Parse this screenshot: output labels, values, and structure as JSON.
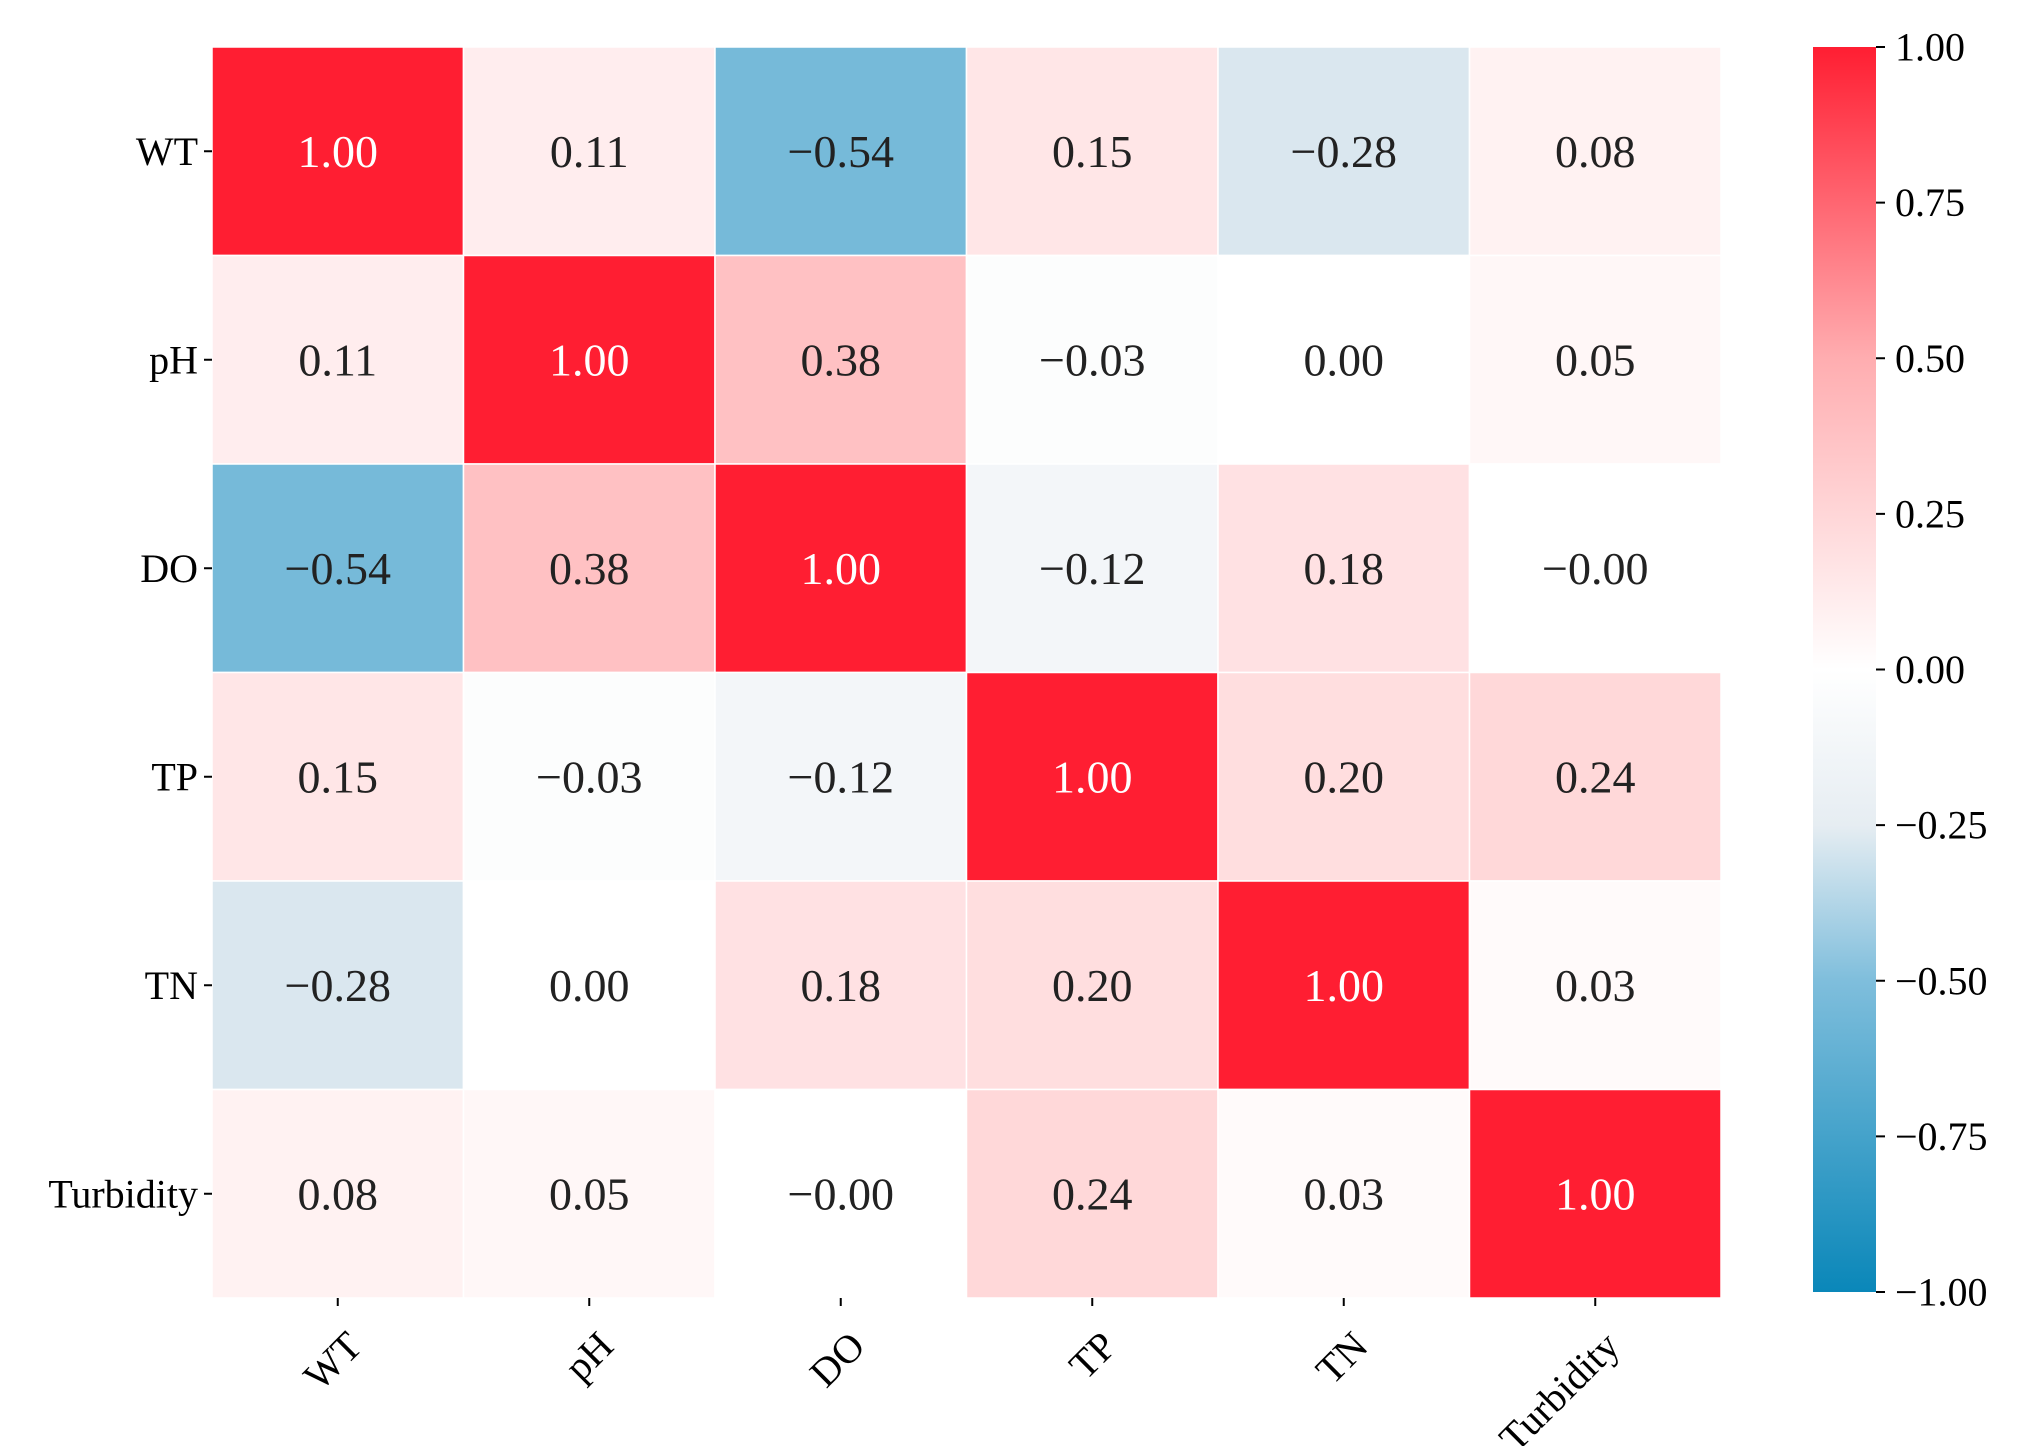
{
  "chart_data": {
    "type": "heatmap",
    "title": "",
    "xlabel": "",
    "ylabel": "",
    "rows": [
      "WT",
      "pH",
      "DO",
      "TP",
      "TN",
      "Turbidity"
    ],
    "cols": [
      "WT",
      "pH",
      "DO",
      "TP",
      "TN",
      "Turbidity"
    ],
    "values": [
      [
        1.0,
        0.11,
        -0.54,
        0.15,
        -0.28,
        0.08
      ],
      [
        0.11,
        1.0,
        0.38,
        -0.03,
        0.0,
        0.05
      ],
      [
        -0.54,
        0.38,
        1.0,
        -0.12,
        0.18,
        -0.0
      ],
      [
        0.15,
        -0.03,
        -0.12,
        1.0,
        0.2,
        0.24
      ],
      [
        -0.28,
        0.0,
        0.18,
        0.2,
        1.0,
        0.03
      ],
      [
        0.08,
        0.05,
        -0.0,
        0.24,
        0.03,
        1.0
      ]
    ],
    "labels": [
      [
        "1.00",
        "0.11",
        "−0.54",
        "0.15",
        "−0.28",
        "0.08"
      ],
      [
        "0.11",
        "1.00",
        "0.38",
        "−0.03",
        "0.00",
        "0.05"
      ],
      [
        "−0.54",
        "0.38",
        "1.00",
        "−0.12",
        "0.18",
        "−0.00"
      ],
      [
        "0.15",
        "−0.03",
        "−0.12",
        "1.00",
        "0.20",
        "0.24"
      ],
      [
        "−0.28",
        "0.00",
        "0.18",
        "0.20",
        "1.00",
        "0.03"
      ],
      [
        "0.08",
        "0.05",
        "−0.00",
        "0.24",
        "0.03",
        "1.00"
      ]
    ],
    "vmin": -1.0,
    "vmax": 1.0,
    "colorbar_ticks": [
      1.0,
      0.75,
      0.5,
      0.25,
      0.0,
      -0.25,
      -0.5,
      -0.75,
      -1.0
    ],
    "colorbar_tick_labels": [
      "1.00",
      "0.75",
      "0.50",
      "0.25",
      "0.00",
      "−0.25",
      "−0.50",
      "−0.75",
      "−1.00"
    ],
    "colormap": {
      "stops": [
        {
          "v": -1.0,
          "color": "#0a87b9"
        },
        {
          "v": -0.5,
          "color": "#7fbedc"
        },
        {
          "v": -0.25,
          "color": "#e6edf2"
        },
        {
          "v": 0.0,
          "color": "#ffffff"
        },
        {
          "v": 0.5,
          "color": "#ffadb0"
        },
        {
          "v": 1.0,
          "color": "#ff1e32"
        }
      ]
    }
  }
}
